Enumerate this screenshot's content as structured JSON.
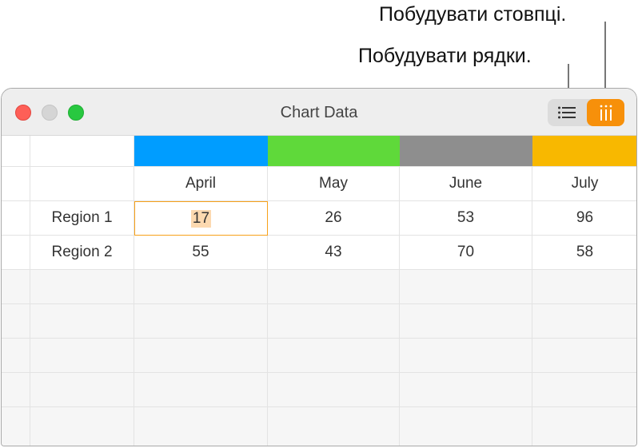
{
  "callouts": {
    "columns": "Побудувати стовпці.",
    "rows": "Побудувати рядки."
  },
  "window": {
    "title": "Chart Data",
    "plot_rows_button": "list-icon",
    "plot_columns_button": "columns-icon",
    "active_mode": "columns",
    "accent": "#f7900a"
  },
  "table": {
    "columns": [
      {
        "label": "April",
        "color": "#009dff"
      },
      {
        "label": "May",
        "color": "#5fd93a"
      },
      {
        "label": "June",
        "color": "#8e8e8e"
      },
      {
        "label": "July",
        "color": "#f8b800"
      }
    ],
    "rows": [
      {
        "label": "Region 1",
        "values": [
          "17",
          "26",
          "53",
          "96"
        ]
      },
      {
        "label": "Region 2",
        "values": [
          "55",
          "43",
          "70",
          "58"
        ]
      }
    ],
    "selected_cell": "17"
  }
}
